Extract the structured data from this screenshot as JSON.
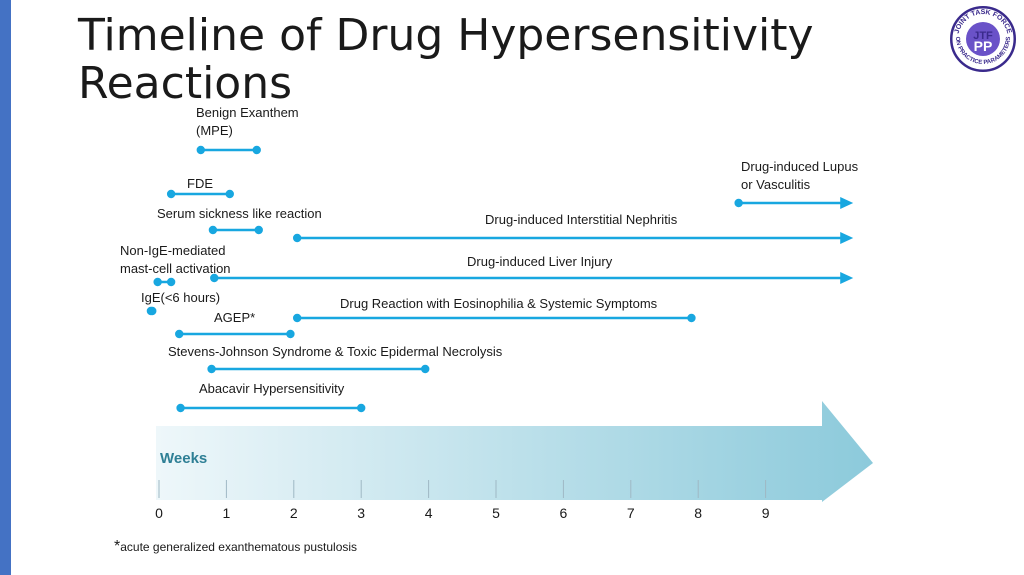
{
  "slide": {
    "title": "Timeline of Drug Hypersensitivity Reactions",
    "footnote_marker": "*",
    "footnote_text": "acute generalized exanthematous pustulosis"
  },
  "logo": {
    "ring_text_top": "JOINT TASK FORCE",
    "ring_text_bottom": "ON PRACTICE PARAMETERS",
    "inner_top": "JTF",
    "inner_bottom": "PP",
    "colors": {
      "ring": "#3a2a8c",
      "inner": "#6a52c8"
    }
  },
  "axis": {
    "label": "Weeks",
    "ticks": [
      "0",
      "1",
      "2",
      "3",
      "4",
      "5",
      "6",
      "7",
      "8",
      "9"
    ],
    "colors": {
      "arrow_start": "#eef7fa",
      "arrow_end": "#8ccadb",
      "label": "#2e7f95"
    }
  },
  "colors": {
    "line": "#18a7e0",
    "text": "#1a1a1a"
  },
  "reactions": [
    {
      "id": "benign-exanthem",
      "lines": [
        "Benign Exanthem",
        "(MPE)"
      ],
      "start": 0.62,
      "end": 1.45,
      "arrow": false
    },
    {
      "id": "drug-induced-lupus",
      "lines": [
        "Drug-induced Lupus",
        "or Vasculitis"
      ],
      "start": 8.6,
      "end": 10.3,
      "arrow": true
    },
    {
      "id": "fde",
      "lines": [
        "FDE"
      ],
      "start": 0.18,
      "end": 1.05,
      "arrow": false
    },
    {
      "id": "serum-sickness",
      "lines": [
        "Serum sickness like reaction"
      ],
      "start": 0.8,
      "end": 1.48,
      "arrow": false
    },
    {
      "id": "interstitial-nephritis",
      "lines": [
        "Drug-induced Interstitial Nephritis"
      ],
      "start": 2.05,
      "end": 10.3,
      "arrow": true
    },
    {
      "id": "non-ige-mast-cell",
      "lines": [
        "Non-IgE-mediated",
        "mast-cell activation"
      ],
      "start": -0.02,
      "end": 0.18,
      "arrow": false
    },
    {
      "id": "liver-injury",
      "lines": [
        "Drug-induced Liver Injury"
      ],
      "start": 0.82,
      "end": 10.3,
      "arrow": true
    },
    {
      "id": "ige",
      "lines": [
        "IgE(<6 hours)"
      ],
      "start": -0.12,
      "end": -0.1,
      "arrow": false
    },
    {
      "id": "dress",
      "lines": [
        "Drug Reaction with Eosinophilia & Systemic Symptoms"
      ],
      "start": 2.05,
      "end": 7.9,
      "arrow": false
    },
    {
      "id": "agep",
      "lines": [
        "AGEP*"
      ],
      "start": 0.3,
      "end": 1.95,
      "arrow": false
    },
    {
      "id": "sjs-ten",
      "lines": [
        "Stevens-Johnson Syndrome & Toxic Epidermal Necrolysis"
      ],
      "start": 0.78,
      "end": 3.95,
      "arrow": false
    },
    {
      "id": "abacavir",
      "lines": [
        "Abacavir Hypersensitivity"
      ],
      "start": 0.32,
      "end": 3.0,
      "arrow": false
    }
  ]
}
